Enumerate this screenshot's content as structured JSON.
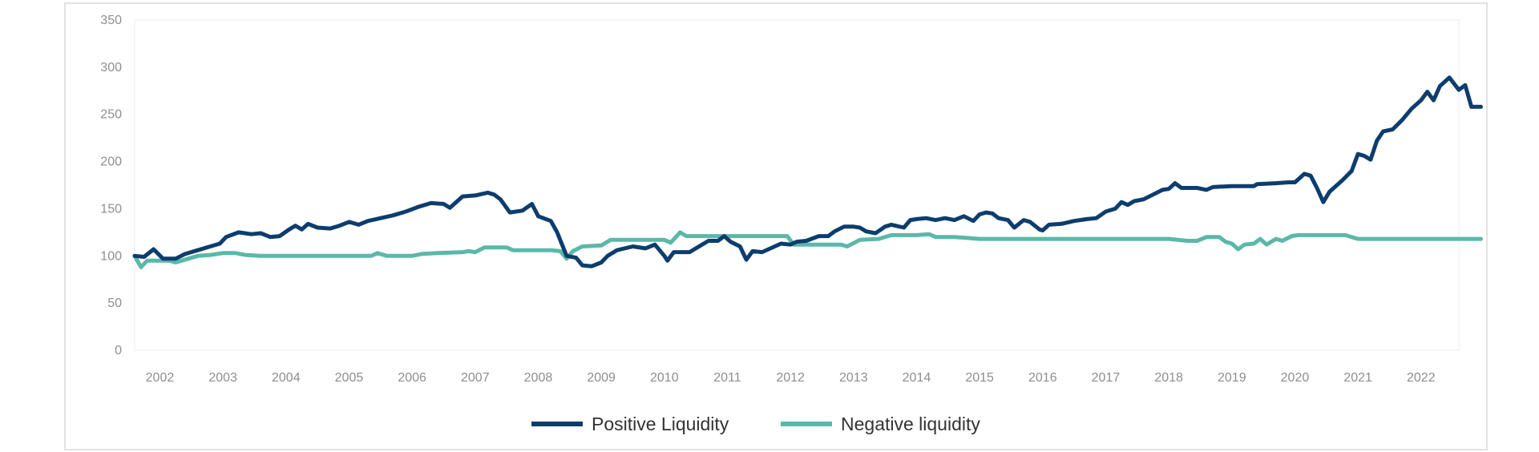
{
  "chart_data": {
    "type": "line",
    "title": "",
    "xlabel": "",
    "ylabel": "",
    "ylim": [
      0,
      350
    ],
    "yticks": [
      0,
      50,
      100,
      150,
      200,
      250,
      300,
      350
    ],
    "xticks": [
      "2002",
      "2003",
      "2004",
      "2005",
      "2006",
      "2007",
      "2008",
      "2009",
      "2010",
      "2011",
      "2012",
      "2013",
      "2014",
      "2015",
      "2016",
      "2017",
      "2018",
      "2019",
      "2020",
      "2021",
      "2022"
    ],
    "xlim": [
      2001.6,
      2022.6
    ],
    "grid": false,
    "legend_position": "bottom-center",
    "series": [
      {
        "name": "Positive Liquidity",
        "color": "#0d3d6e",
        "points": [
          [
            2001.6,
            100
          ],
          [
            2001.75,
            99
          ],
          [
            2001.9,
            107
          ],
          [
            2002.05,
            97
          ],
          [
            2002.25,
            97
          ],
          [
            2002.4,
            102
          ],
          [
            2002.6,
            106
          ],
          [
            2002.8,
            110
          ],
          [
            2002.95,
            113
          ],
          [
            2003.05,
            120
          ],
          [
            2003.25,
            125
          ],
          [
            2003.45,
            123
          ],
          [
            2003.6,
            124
          ],
          [
            2003.75,
            120
          ],
          [
            2003.9,
            121
          ],
          [
            2004.05,
            128
          ],
          [
            2004.15,
            132
          ],
          [
            2004.25,
            128
          ],
          [
            2004.35,
            134
          ],
          [
            2004.5,
            130
          ],
          [
            2004.7,
            129
          ],
          [
            2004.85,
            132
          ],
          [
            2005.0,
            136
          ],
          [
            2005.15,
            133
          ],
          [
            2005.3,
            137
          ],
          [
            2005.5,
            140
          ],
          [
            2005.7,
            143
          ],
          [
            2005.9,
            147
          ],
          [
            2006.1,
            152
          ],
          [
            2006.3,
            156
          ],
          [
            2006.5,
            155
          ],
          [
            2006.6,
            151
          ],
          [
            2006.8,
            163
          ],
          [
            2007.0,
            164
          ],
          [
            2007.2,
            167
          ],
          [
            2007.3,
            165
          ],
          [
            2007.4,
            160
          ],
          [
            2007.55,
            146
          ],
          [
            2007.75,
            148
          ],
          [
            2007.9,
            155
          ],
          [
            2008.0,
            142
          ],
          [
            2008.2,
            137
          ],
          [
            2008.3,
            125
          ],
          [
            2008.45,
            100
          ],
          [
            2008.6,
            98
          ],
          [
            2008.7,
            90
          ],
          [
            2008.85,
            89
          ],
          [
            2009.0,
            93
          ],
          [
            2009.1,
            100
          ],
          [
            2009.25,
            106
          ],
          [
            2009.5,
            110
          ],
          [
            2009.7,
            108
          ],
          [
            2009.85,
            112
          ],
          [
            2010.0,
            100
          ],
          [
            2010.05,
            95
          ],
          [
            2010.15,
            104
          ],
          [
            2010.4,
            104
          ],
          [
            2010.55,
            110
          ],
          [
            2010.7,
            116
          ],
          [
            2010.85,
            116
          ],
          [
            2010.95,
            121
          ],
          [
            2011.05,
            115
          ],
          [
            2011.2,
            110
          ],
          [
            2011.3,
            96
          ],
          [
            2011.4,
            105
          ],
          [
            2011.55,
            104
          ],
          [
            2011.75,
            110
          ],
          [
            2011.85,
            113
          ],
          [
            2012.0,
            112
          ],
          [
            2012.1,
            115
          ],
          [
            2012.25,
            116
          ],
          [
            2012.45,
            121
          ],
          [
            2012.6,
            121
          ],
          [
            2012.7,
            126
          ],
          [
            2012.85,
            131
          ],
          [
            2013.0,
            131
          ],
          [
            2013.1,
            130
          ],
          [
            2013.2,
            126
          ],
          [
            2013.35,
            124
          ],
          [
            2013.5,
            131
          ],
          [
            2013.6,
            133
          ],
          [
            2013.8,
            130
          ],
          [
            2013.9,
            138
          ],
          [
            2014.0,
            139
          ],
          [
            2014.15,
            140
          ],
          [
            2014.3,
            138
          ],
          [
            2014.45,
            140
          ],
          [
            2014.6,
            138
          ],
          [
            2014.75,
            142
          ],
          [
            2014.9,
            137
          ],
          [
            2015.0,
            144
          ],
          [
            2015.1,
            146
          ],
          [
            2015.2,
            145
          ],
          [
            2015.3,
            140
          ],
          [
            2015.45,
            138
          ],
          [
            2015.55,
            130
          ],
          [
            2015.7,
            138
          ],
          [
            2015.8,
            136
          ],
          [
            2015.95,
            128
          ],
          [
            2016.0,
            127
          ],
          [
            2016.1,
            133
          ],
          [
            2016.3,
            134
          ],
          [
            2016.5,
            137
          ],
          [
            2016.7,
            139
          ],
          [
            2016.85,
            140
          ],
          [
            2017.0,
            147
          ],
          [
            2017.15,
            150
          ],
          [
            2017.25,
            157
          ],
          [
            2017.35,
            154
          ],
          [
            2017.45,
            158
          ],
          [
            2017.6,
            160
          ],
          [
            2017.75,
            165
          ],
          [
            2017.9,
            170
          ],
          [
            2018.0,
            171
          ],
          [
            2018.1,
            177
          ],
          [
            2018.2,
            172
          ],
          [
            2018.45,
            172
          ],
          [
            2018.6,
            170
          ],
          [
            2018.7,
            173
          ],
          [
            2019.0,
            174
          ],
          [
            2019.35,
            174
          ],
          [
            2019.4,
            176
          ],
          [
            2019.7,
            177
          ],
          [
            2019.9,
            178
          ],
          [
            2020.0,
            178
          ],
          [
            2020.15,
            187
          ],
          [
            2020.25,
            185
          ],
          [
            2020.35,
            172
          ],
          [
            2020.45,
            157
          ],
          [
            2020.55,
            168
          ],
          [
            2020.75,
            180
          ],
          [
            2020.9,
            190
          ],
          [
            2021.0,
            208
          ],
          [
            2021.1,
            206
          ],
          [
            2021.2,
            202
          ],
          [
            2021.3,
            222
          ],
          [
            2021.4,
            232
          ],
          [
            2021.55,
            234
          ],
          [
            2021.7,
            244
          ],
          [
            2021.85,
            256
          ],
          [
            2022.0,
            265
          ],
          [
            2022.1,
            274
          ],
          [
            2022.2,
            265
          ],
          [
            2022.3,
            280
          ],
          [
            2022.45,
            289
          ],
          [
            2022.6,
            276
          ],
          [
            2022.7,
            281
          ],
          [
            2022.8,
            258
          ],
          [
            2022.95,
            258
          ]
        ]
      },
      {
        "name": "Negative liquidity",
        "color": "#5bb8a8",
        "points": [
          [
            2001.6,
            100
          ],
          [
            2001.7,
            88
          ],
          [
            2001.8,
            95
          ],
          [
            2002.15,
            95
          ],
          [
            2002.25,
            93
          ],
          [
            2002.45,
            97
          ],
          [
            2002.6,
            100
          ],
          [
            2002.8,
            101
          ],
          [
            2003.0,
            103
          ],
          [
            2003.2,
            103
          ],
          [
            2003.35,
            101
          ],
          [
            2003.6,
            100
          ],
          [
            2004.0,
            100
          ],
          [
            2004.5,
            100
          ],
          [
            2005.0,
            100
          ],
          [
            2005.35,
            100
          ],
          [
            2005.45,
            103
          ],
          [
            2005.6,
            100
          ],
          [
            2006.0,
            100
          ],
          [
            2006.15,
            102
          ],
          [
            2006.4,
            103
          ],
          [
            2006.8,
            104
          ],
          [
            2006.9,
            105
          ],
          [
            2007.0,
            104
          ],
          [
            2007.15,
            109
          ],
          [
            2007.5,
            109
          ],
          [
            2007.6,
            106
          ],
          [
            2007.9,
            106
          ],
          [
            2008.2,
            106
          ],
          [
            2008.35,
            105
          ],
          [
            2008.45,
            97
          ],
          [
            2008.55,
            105
          ],
          [
            2008.7,
            110
          ],
          [
            2009.0,
            111
          ],
          [
            2009.15,
            117
          ],
          [
            2009.6,
            117
          ],
          [
            2010.0,
            117
          ],
          [
            2010.1,
            114
          ],
          [
            2010.25,
            125
          ],
          [
            2010.35,
            121
          ],
          [
            2010.9,
            121
          ],
          [
            2011.4,
            121
          ],
          [
            2011.7,
            121
          ],
          [
            2011.95,
            121
          ],
          [
            2012.05,
            112
          ],
          [
            2012.5,
            112
          ],
          [
            2012.8,
            112
          ],
          [
            2012.9,
            110
          ],
          [
            2013.1,
            117
          ],
          [
            2013.4,
            118
          ],
          [
            2013.6,
            122
          ],
          [
            2014.0,
            122
          ],
          [
            2014.2,
            123
          ],
          [
            2014.3,
            120
          ],
          [
            2014.6,
            120
          ],
          [
            2014.8,
            119
          ],
          [
            2015.0,
            118
          ],
          [
            2015.5,
            118
          ],
          [
            2016.0,
            118
          ],
          [
            2016.5,
            118
          ],
          [
            2017.0,
            118
          ],
          [
            2017.5,
            118
          ],
          [
            2018.0,
            118
          ],
          [
            2018.3,
            116
          ],
          [
            2018.45,
            116
          ],
          [
            2018.6,
            120
          ],
          [
            2018.8,
            120
          ],
          [
            2018.9,
            115
          ],
          [
            2019.0,
            113
          ],
          [
            2019.1,
            107
          ],
          [
            2019.2,
            112
          ],
          [
            2019.35,
            113
          ],
          [
            2019.45,
            118
          ],
          [
            2019.55,
            112
          ],
          [
            2019.7,
            118
          ],
          [
            2019.8,
            116
          ],
          [
            2019.95,
            121
          ],
          [
            2020.05,
            122
          ],
          [
            2020.5,
            122
          ],
          [
            2020.8,
            122
          ],
          [
            2021.0,
            118
          ],
          [
            2021.5,
            118
          ],
          [
            2022.0,
            118
          ],
          [
            2022.5,
            118
          ],
          [
            2022.95,
            118
          ]
        ]
      }
    ]
  }
}
